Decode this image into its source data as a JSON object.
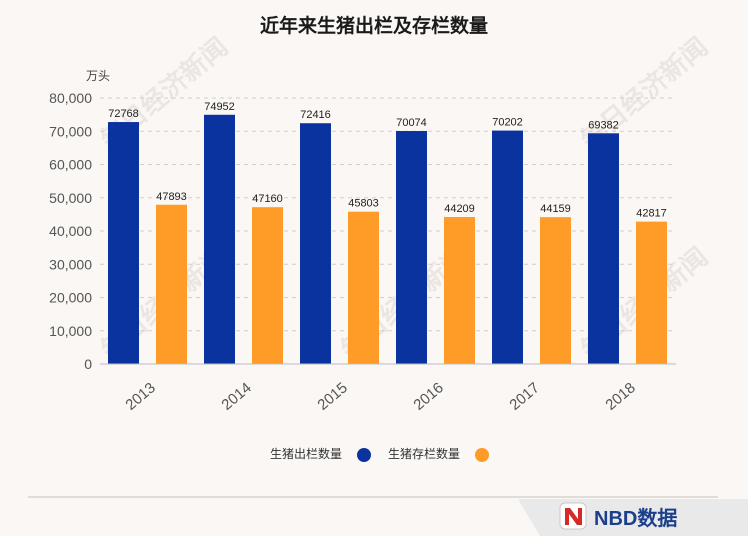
{
  "chart_data": {
    "type": "bar",
    "title": "近年来生猪出栏及存栏数量",
    "y_unit": "万头",
    "categories": [
      "2013",
      "2014",
      "2015",
      "2016",
      "2017",
      "2018"
    ],
    "series": [
      {
        "name": "生猪出栏数量",
        "values": [
          72768,
          74952,
          72416,
          70074,
          70202,
          69382
        ],
        "color": "#0b33a0"
      },
      {
        "name": "生猪存栏数量",
        "values": [
          47893,
          47160,
          45803,
          44209,
          44159,
          42817
        ],
        "color": "#ff9b27"
      }
    ],
    "ylim": [
      0,
      80000
    ],
    "yticks": [
      "0",
      "10,000",
      "20,000",
      "30,000",
      "40,000",
      "50,000",
      "60,000",
      "70,000",
      "80,000"
    ],
    "grid": true,
    "legend_position": "bottom"
  },
  "watermark": "每日经济新闻",
  "logo": {
    "text": "NBD数据"
  }
}
